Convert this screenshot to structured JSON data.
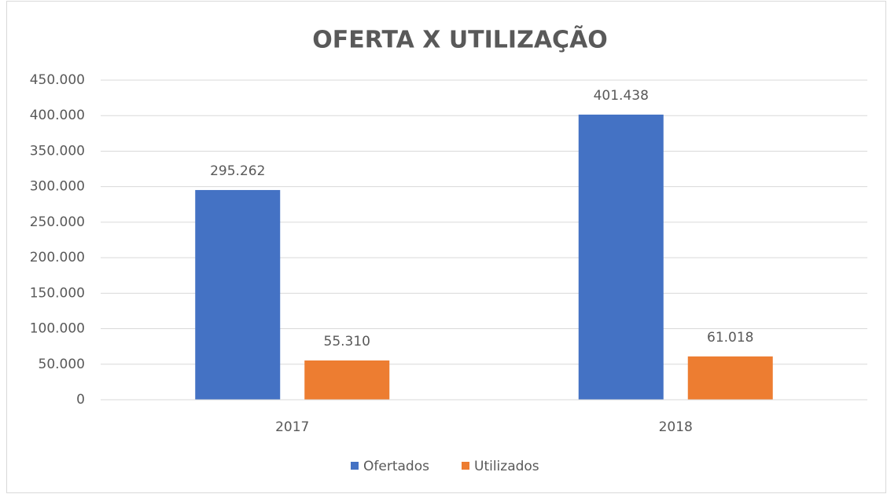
{
  "chart_data": {
    "type": "bar",
    "title": "OFERTA X UTILIZAÇÃO",
    "categories": [
      "2017",
      "2018"
    ],
    "series": [
      {
        "name": "Ofertados",
        "color": "#4472c4",
        "values": [
          295262,
          401438
        ],
        "value_labels": [
          "295.262",
          "401.438"
        ]
      },
      {
        "name": "Utilizados",
        "color": "#ed7d31",
        "values": [
          55310,
          61018
        ],
        "value_labels": [
          "55.310",
          "61.018"
        ]
      }
    ],
    "ylim": [
      0,
      450000
    ],
    "yticks": [
      0,
      {
        "value": 50000,
        "label": "50.000"
      },
      {
        "value": 100000,
        "label": "100.000"
      },
      {
        "value": 150000,
        "label": "150.000"
      },
      {
        "value": 200000,
        "label": "200.000"
      },
      {
        "value": 250000,
        "label": "250.000"
      },
      {
        "value": 300000,
        "label": "300.000"
      },
      {
        "value": 350000,
        "label": "350.000"
      },
      {
        "value": 400000,
        "label": "400.000"
      },
      {
        "value": 450000,
        "label": "450.000"
      }
    ],
    "grid": true,
    "legend": "bottom"
  }
}
